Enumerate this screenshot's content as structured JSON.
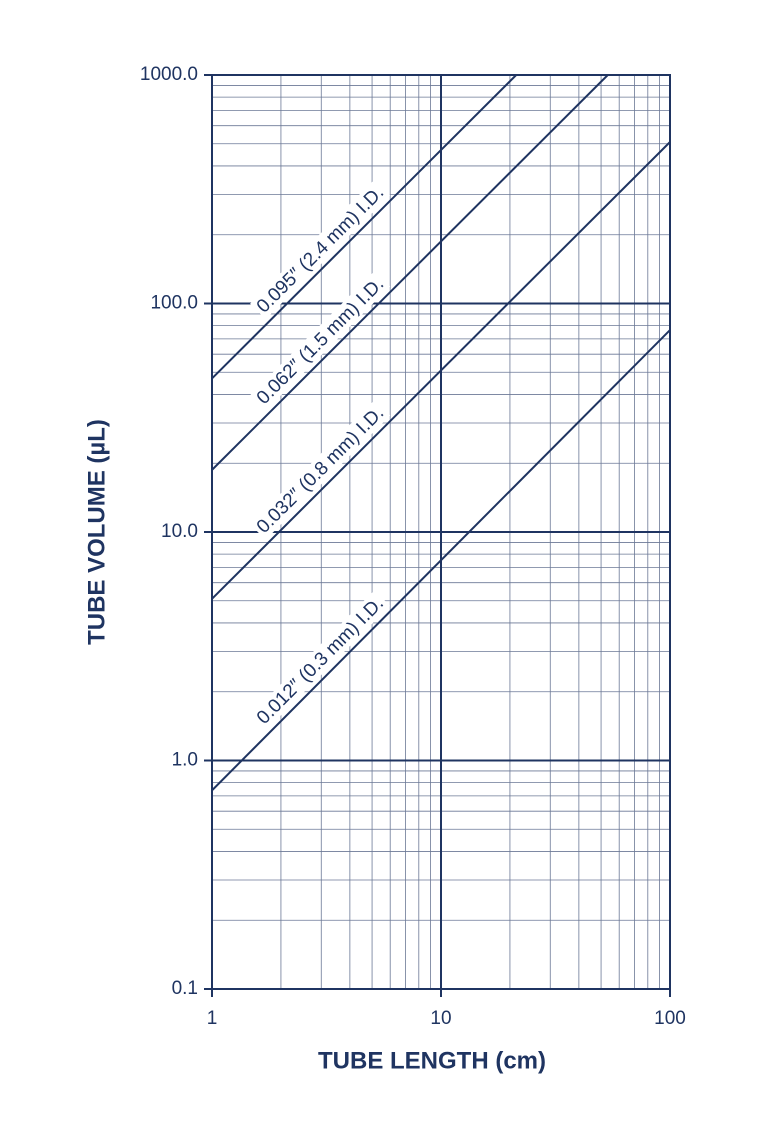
{
  "chart_data": {
    "type": "line",
    "xlabel": "TUBE LENGTH (cm)",
    "ylabel": "TUBE VOLUME (µL)",
    "xscale": "log",
    "yscale": "log",
    "grid": true,
    "minor_grid": true,
    "color": "#1f3461",
    "xlim": [
      1,
      100
    ],
    "xticks": [
      1,
      10,
      100
    ],
    "ylim": [
      0.1,
      1000
    ],
    "yticks": [
      0.1,
      {
        "value": 1,
        "label": "1.0"
      },
      {
        "value": 10,
        "label": "10.0"
      },
      {
        "value": 100,
        "label": "100.0"
      },
      {
        "value": 1000,
        "label": "1000.0"
      }
    ],
    "series": [
      {
        "name": "0.095″ (2.4 mm) I.D.",
        "color": "#1f3461",
        "x": [
          1,
          21.3
        ],
        "values": [
          47,
          1000
        ]
      },
      {
        "name": "0.062″ (1.5 mm) I.D.",
        "color": "#1f3461",
        "x": [
          1,
          53.5
        ],
        "values": [
          18.7,
          1000
        ]
      },
      {
        "name": "0.032″ (0.8 mm) I.D.",
        "color": "#1f3461",
        "x": [
          1,
          100
        ],
        "values": [
          5.1,
          509
        ]
      },
      {
        "name": "0.012″ (0.3 mm) I.D.",
        "color": "#1f3461",
        "x": [
          1,
          100
        ],
        "values": [
          0.74,
          76.5
        ]
      }
    ]
  }
}
